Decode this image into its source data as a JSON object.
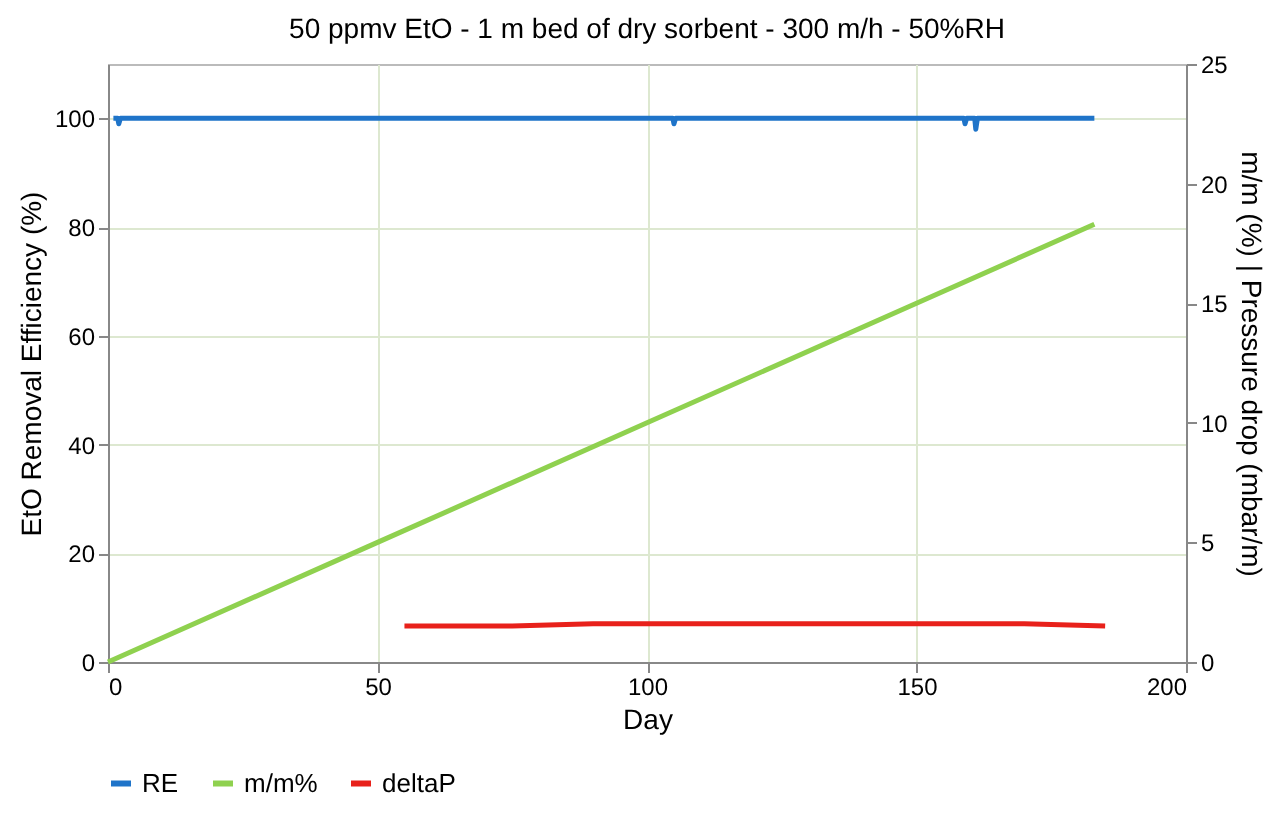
{
  "chart_data": {
    "type": "line",
    "title": "50 ppmv EtO - 1 m bed of dry sorbent - 300 m/h - 50%RH",
    "xlabel": "Day",
    "ylabel": "EtO Removal Efficiency (%)",
    "y2label": "m/m (%) | Pressure drop (mbar/m)",
    "xlim": [
      0,
      200
    ],
    "xticks": [
      0,
      50,
      100,
      150,
      200
    ],
    "ylim": [
      0,
      110
    ],
    "yticks": [
      0,
      20,
      40,
      60,
      80,
      100
    ],
    "y2lim": [
      0,
      25
    ],
    "y2ticks": [
      0,
      5,
      10,
      15,
      20,
      25
    ],
    "grid": true,
    "legend": "bottom",
    "line_style": "solid",
    "series": [
      {
        "name": "RE",
        "color": "#1f74c9",
        "x": [
          1,
          1.8,
          2,
          2.3,
          104.8,
          105,
          105.3,
          158.8,
          159,
          159.3,
          160.8,
          161,
          161.3,
          183
        ],
        "values": [
          100,
          100,
          99,
          100,
          100,
          99,
          100,
          100,
          99,
          100,
          100,
          98,
          100,
          100
        ]
      },
      {
        "name": "m/m%",
        "color": "#8fd14f",
        "axis": "y2",
        "x": [
          0,
          50,
          100,
          150,
          183
        ],
        "values": [
          0,
          5,
          10,
          15,
          18.3
        ]
      },
      {
        "name": "deltaP",
        "color": "#e8211b",
        "axis": "y2",
        "x": [
          55,
          75,
          90,
          120,
          150,
          170,
          185
        ],
        "values": [
          1.5,
          1.5,
          1.6,
          1.6,
          1.6,
          1.6,
          1.5
        ]
      }
    ]
  }
}
